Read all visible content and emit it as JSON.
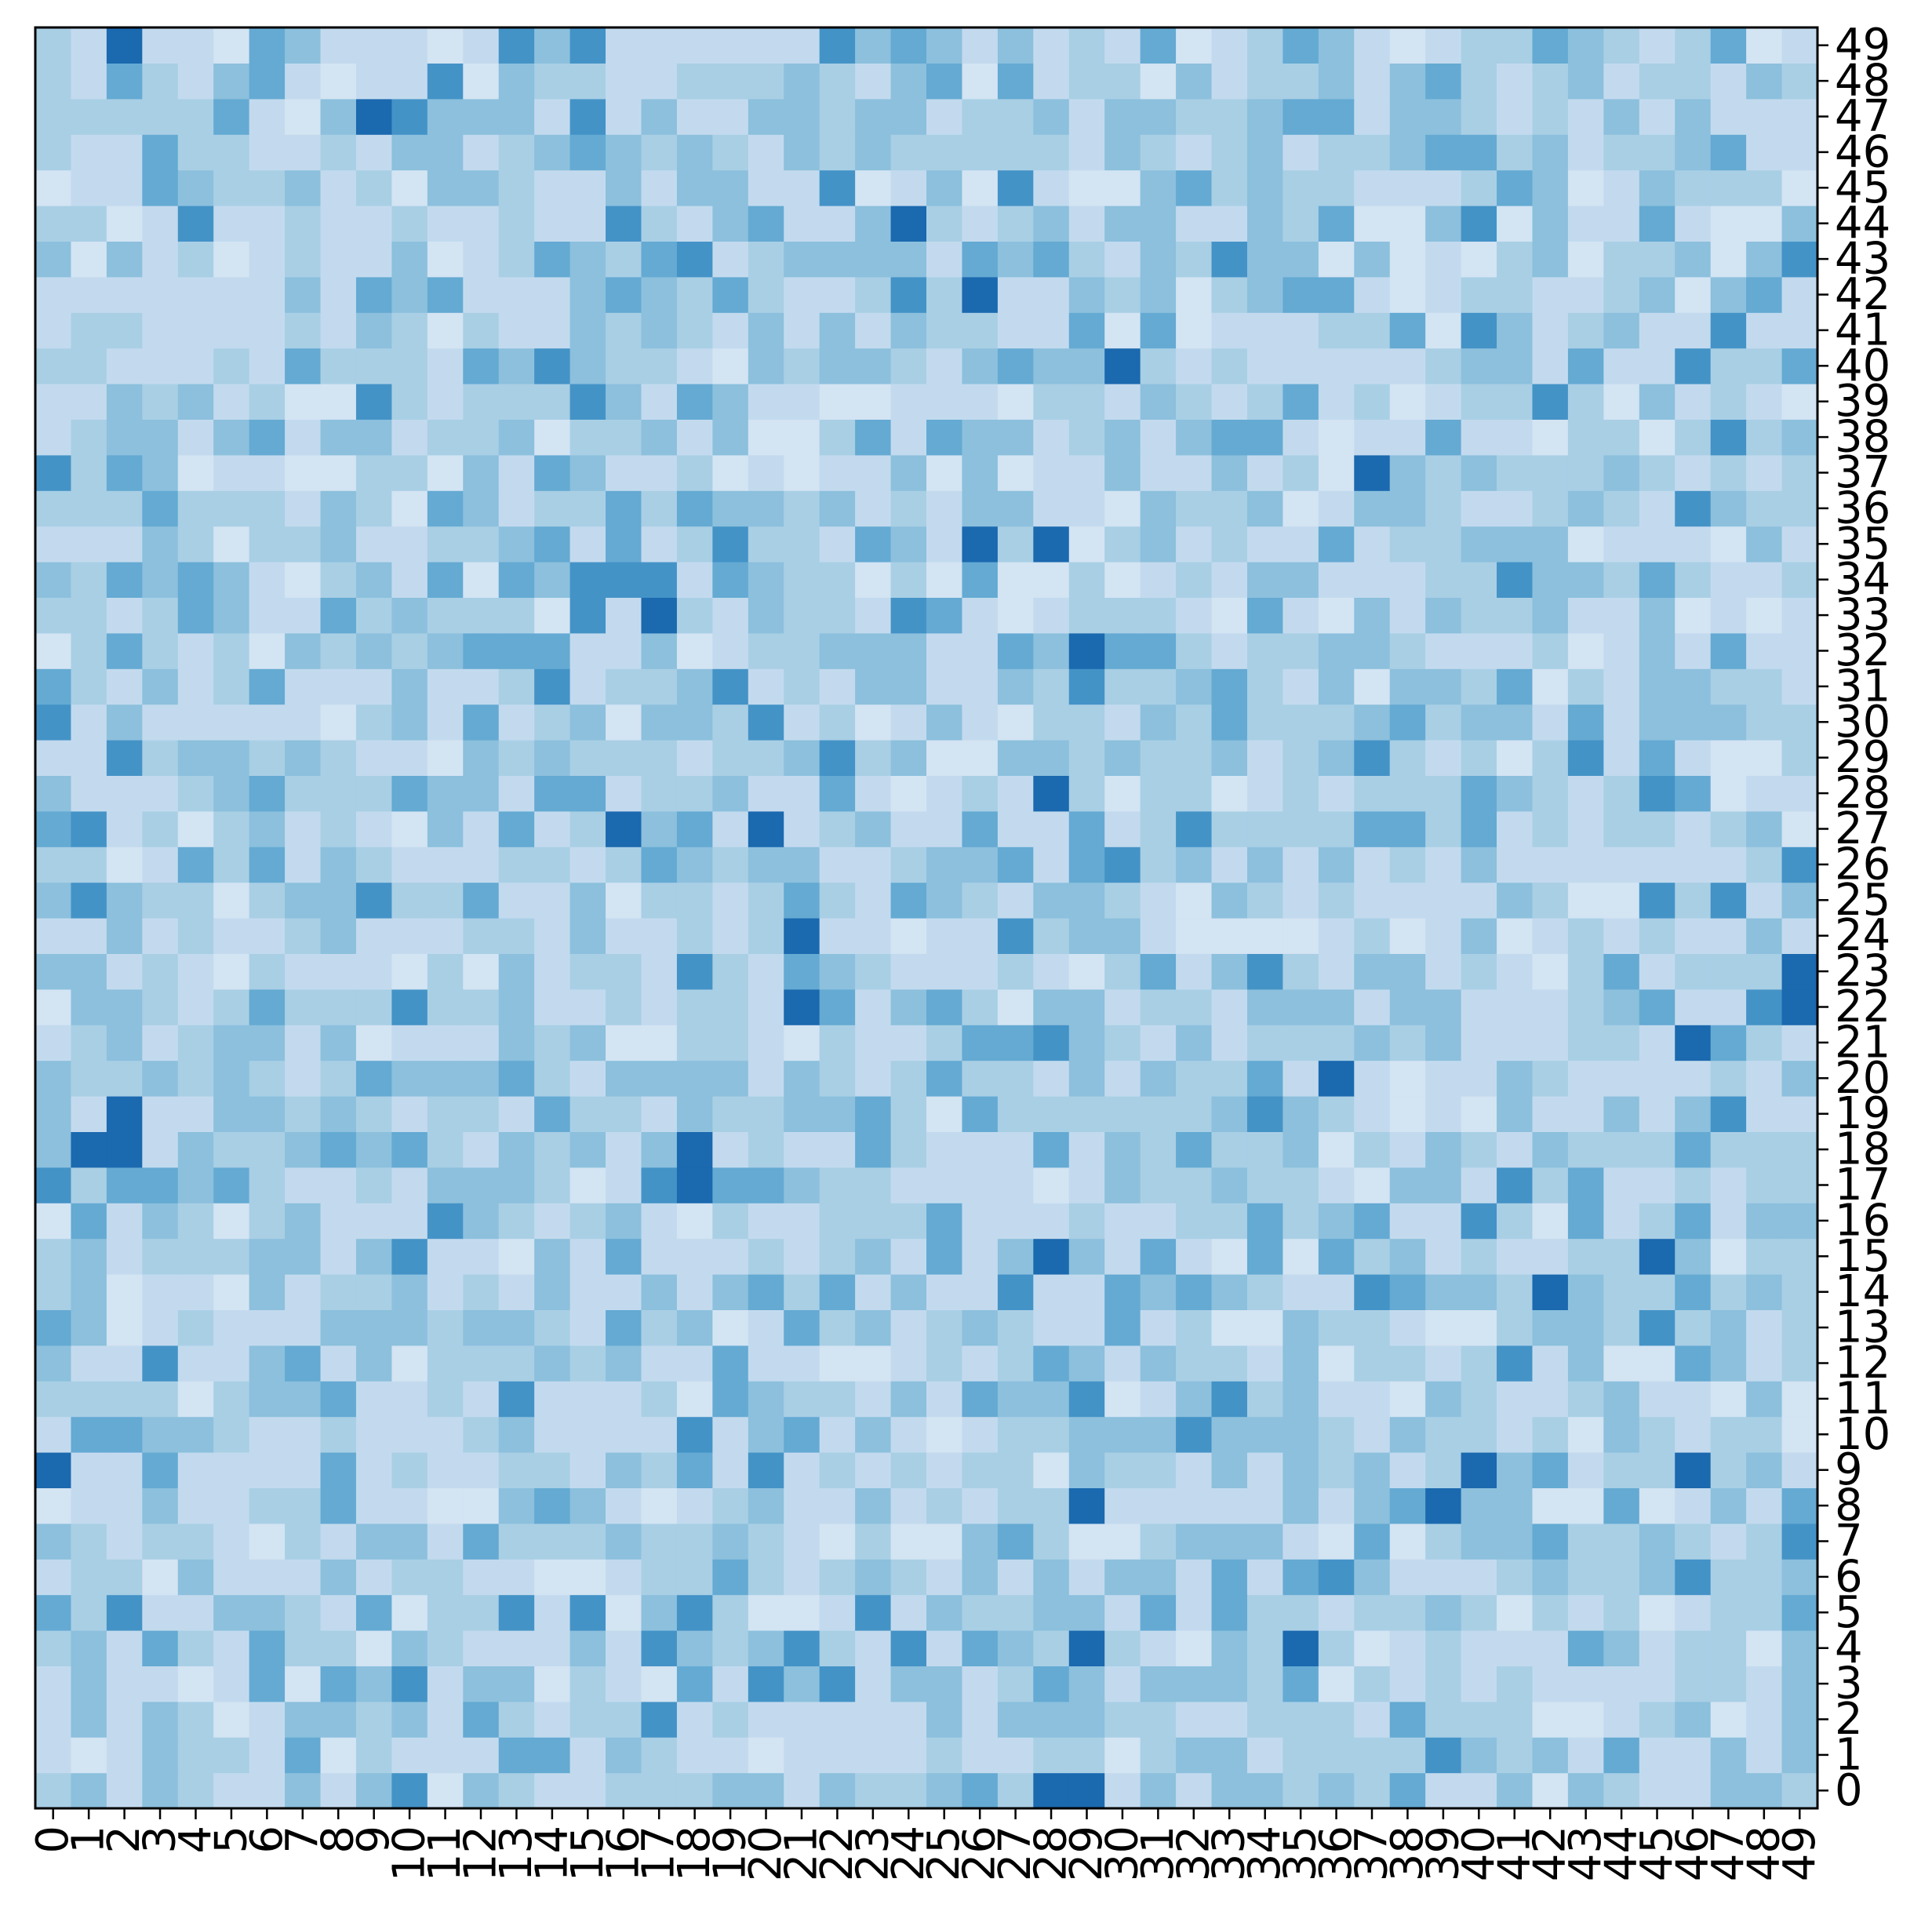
{
  "chart_data": {
    "type": "heatmap",
    "title": "",
    "xlabel": "",
    "ylabel": "",
    "x_ticks": [
      "0",
      "1",
      "2",
      "3",
      "4",
      "5",
      "6",
      "7",
      "8",
      "9",
      "10",
      "11",
      "12",
      "13",
      "14",
      "15",
      "16",
      "17",
      "18",
      "19",
      "20",
      "21",
      "22",
      "23",
      "24",
      "25",
      "26",
      "27",
      "28",
      "29",
      "30",
      "31",
      "32",
      "33",
      "34",
      "35",
      "36",
      "37",
      "38",
      "39",
      "40",
      "41",
      "42",
      "43",
      "44",
      "45",
      "46",
      "47",
      "48",
      "49"
    ],
    "y_ticks": [
      "0",
      "1",
      "2",
      "3",
      "4",
      "5",
      "6",
      "7",
      "8",
      "9",
      "10",
      "11",
      "12",
      "13",
      "14",
      "15",
      "16",
      "17",
      "18",
      "19",
      "20",
      "21",
      "22",
      "23",
      "24",
      "25",
      "26",
      "27",
      "28",
      "29",
      "30",
      "31",
      "32",
      "33",
      "34",
      "35",
      "36",
      "37",
      "38",
      "39",
      "40",
      "41",
      "42",
      "43",
      "44",
      "45",
      "46",
      "47",
      "48",
      "49"
    ],
    "y_axis_side": "right",
    "y_origin": "bottom",
    "xlim": [
      0,
      49
    ],
    "ylim": [
      0,
      49
    ],
    "grid": false,
    "legend": "none",
    "colormap": "Blues",
    "value_scale": "0 = white, 1 = dark blue; cell levels estimated from shading",
    "colors": {
      "light": "#f7fbff",
      "mid": "#9ecae1",
      "dark": "#08519c"
    },
    "values_row_order": "row 0 is y = 0 (bottom row), row 49 is y = 49 (top row); each row lists x = 0..49",
    "values": []
  }
}
